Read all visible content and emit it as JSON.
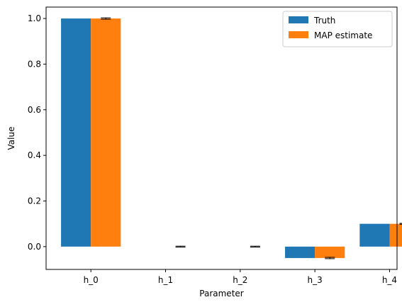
{
  "chart_data": {
    "type": "bar",
    "categories": [
      "h_0",
      "h_1",
      "h_2",
      "h_3",
      "h_4"
    ],
    "series": [
      {
        "name": "Truth",
        "values": [
          1.0,
          0.0,
          0.0,
          -0.05,
          0.1
        ],
        "color": "#1f77b4"
      },
      {
        "name": "MAP estimate",
        "values": [
          1.0,
          0.0,
          0.0,
          -0.05,
          0.1
        ],
        "color": "#ff7f0e",
        "errors": [
          0.003,
          0.002,
          0.002,
          0.003,
          0.002
        ]
      }
    ],
    "xlabel": "Parameter",
    "ylabel": "Value",
    "ylim": [
      -0.1,
      1.05
    ],
    "yticks": [
      0.0,
      0.2,
      0.4,
      0.6,
      0.8,
      1.0
    ],
    "ytick_labels": [
      "0.0",
      "0.2",
      "0.4",
      "0.6",
      "0.8",
      "1.0"
    ],
    "legend_position": "top-right",
    "grid": false
  }
}
